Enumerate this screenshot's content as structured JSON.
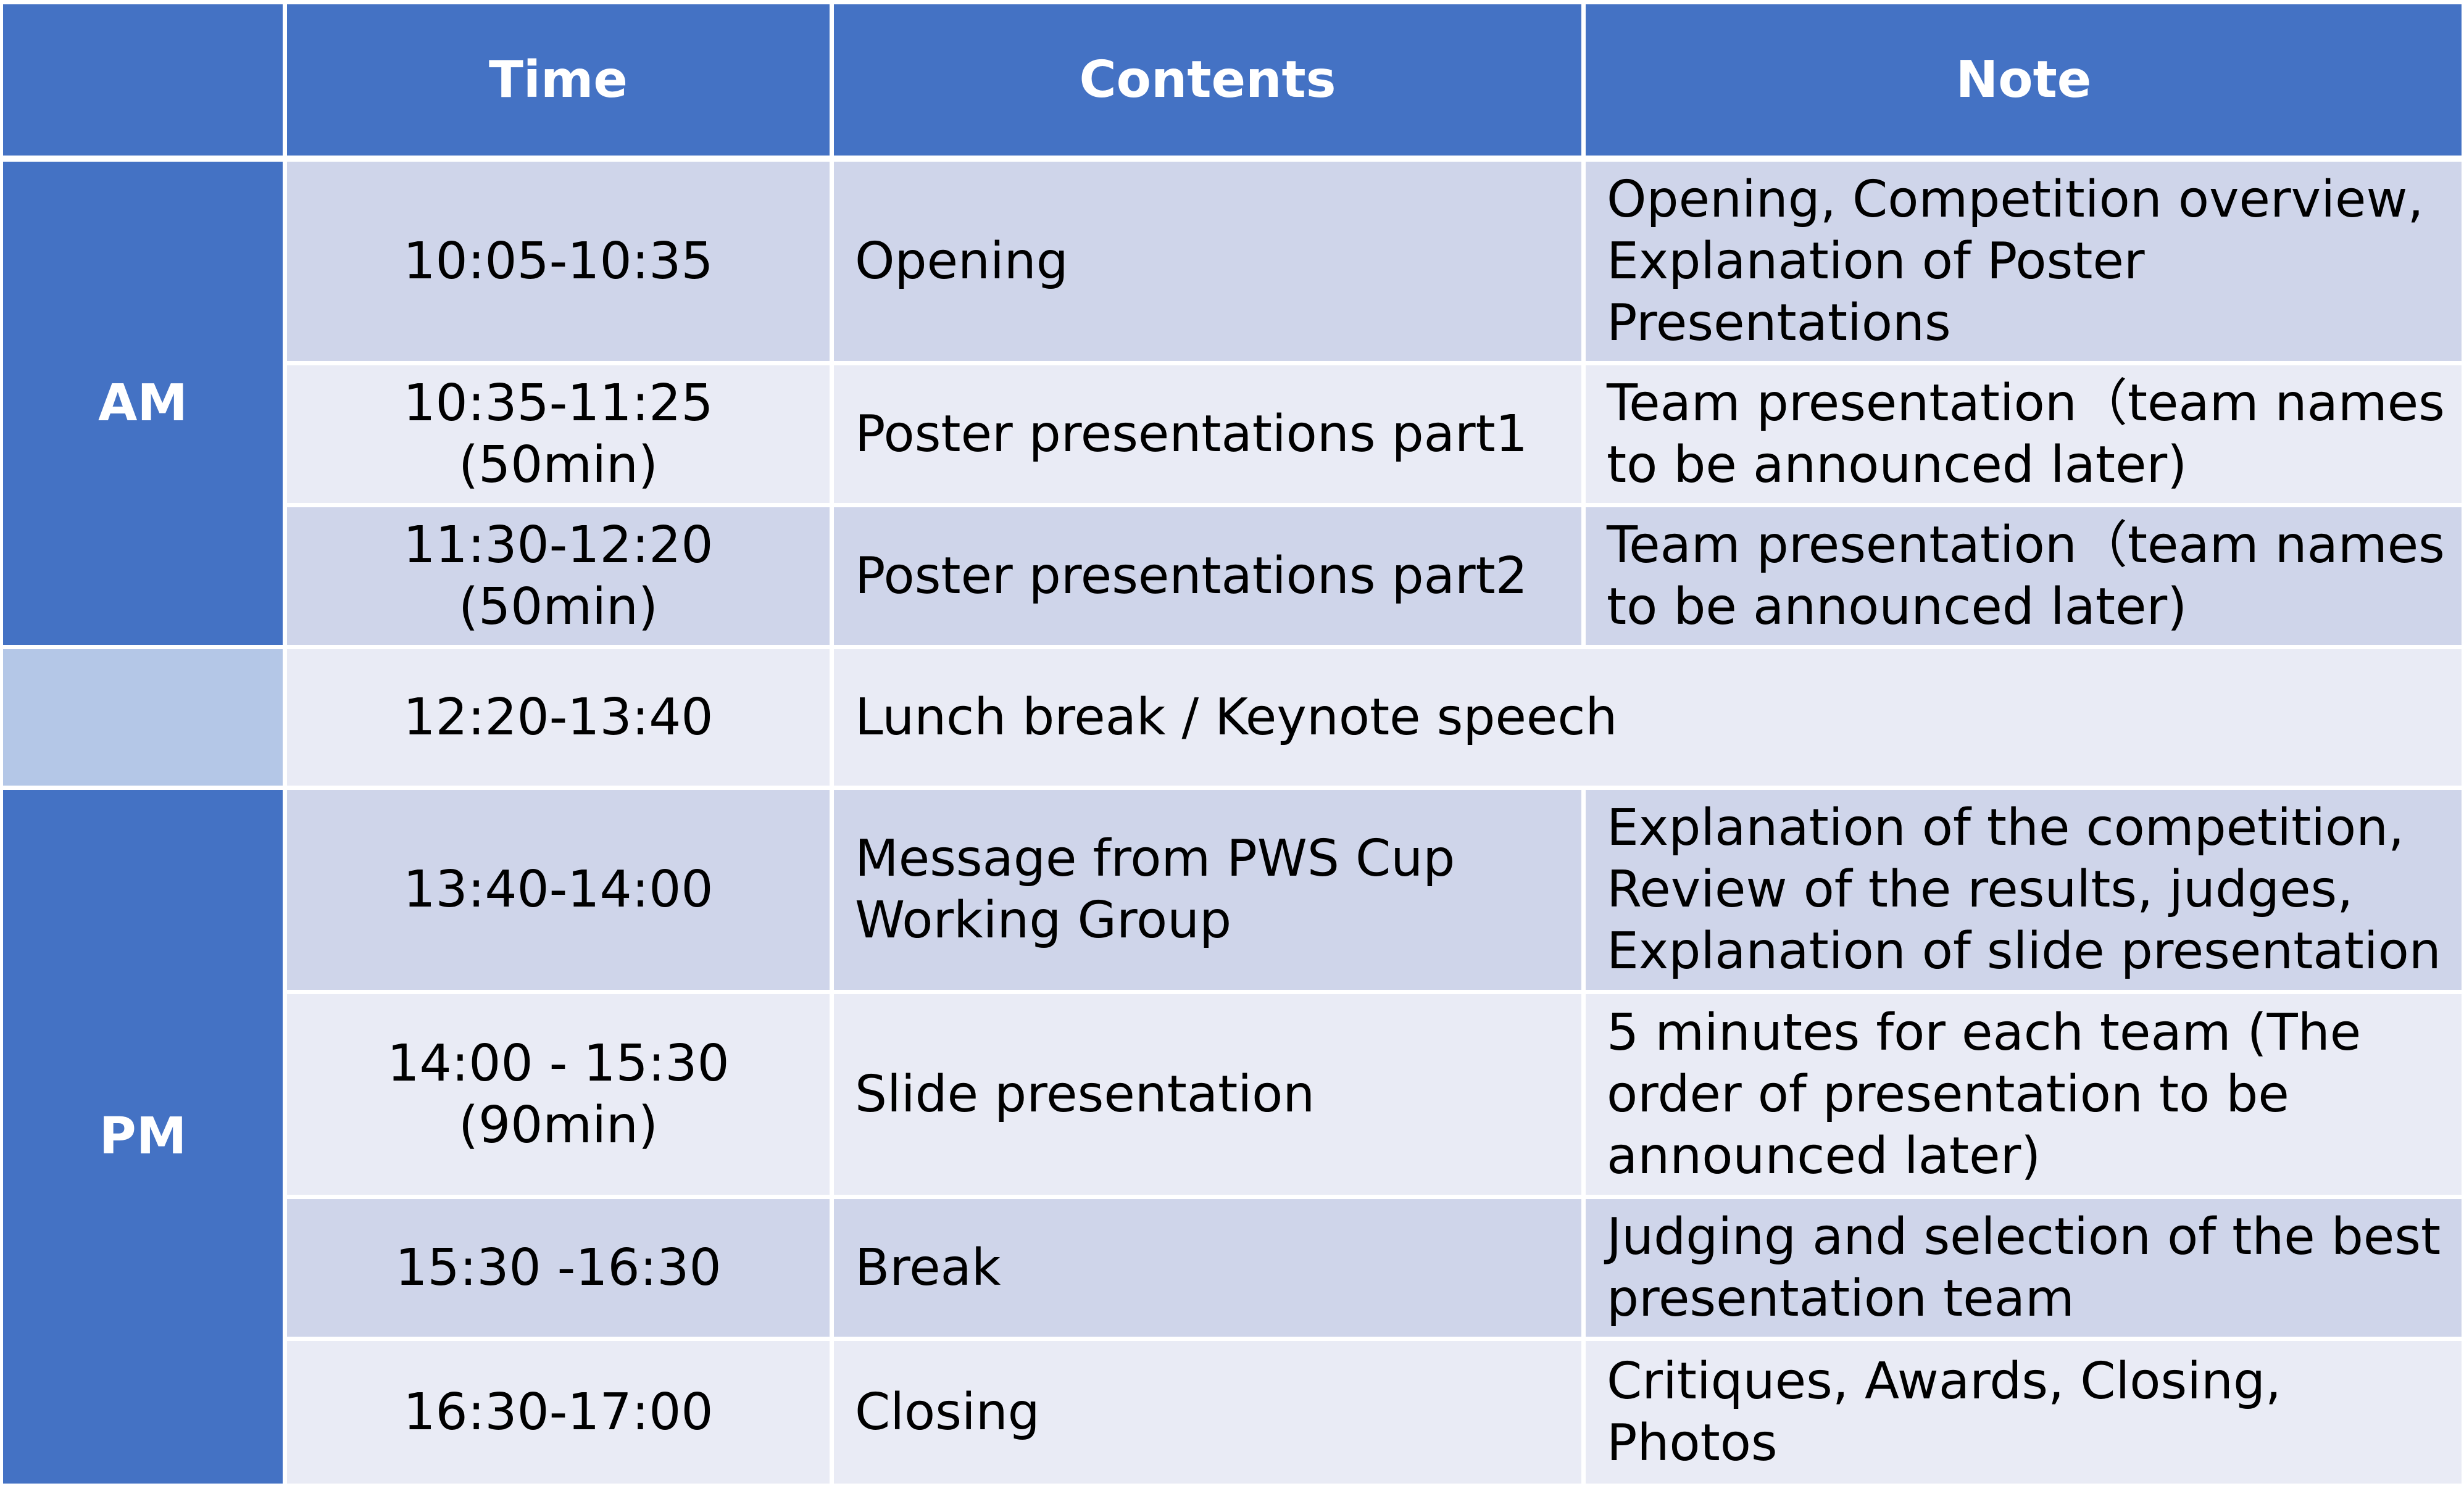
{
  "header": {
    "col_period": "",
    "col_time": "Time",
    "col_contents": "Contents",
    "col_note": "Note"
  },
  "periods": {
    "am": "AM",
    "lunch": "",
    "pm": "PM"
  },
  "rows": [
    {
      "time": [
        "10:05-10:35"
      ],
      "contents": [
        "Opening"
      ],
      "note": [
        "Opening, Competition overview,",
        "Explanation of Poster",
        "Presentations"
      ]
    },
    {
      "time": [
        "10:35-11:25",
        "(50min)"
      ],
      "contents": [
        "Poster presentations part1"
      ],
      "note": [
        "Team presentation（team names",
        "to be announced later)"
      ]
    },
    {
      "time": [
        "11:30-12:20",
        "(50min)"
      ],
      "contents": [
        "Poster presentations part2"
      ],
      "note": [
        "Team presentation（team names",
        "to be announced later)"
      ]
    },
    {
      "time": [
        "12:20-13:40"
      ],
      "contents": [
        "Lunch break / Keynote speech"
      ],
      "note": []
    },
    {
      "time": [
        "13:40-14:00"
      ],
      "contents": [
        "Message from PWS Cup",
        "Working Group"
      ],
      "note": [
        "Explanation of the competition,",
        "Review of the results, judges,",
        "Explanation of slide presentation"
      ]
    },
    {
      "time": [
        "14:00 - 15:30",
        "(90min)"
      ],
      "contents": [
        "Slide presentation"
      ],
      "note": [
        "5 minutes for each team (The",
        "order of presentation to be",
        "announced later)"
      ]
    },
    {
      "time": [
        "15:30 -16:30"
      ],
      "contents": [
        "Break"
      ],
      "note": [
        "Judging and selection of the best",
        "presentation team"
      ]
    },
    {
      "time": [
        "16:30-17:00"
      ],
      "contents": [
        "Closing"
      ],
      "note": [
        "Critiques, Awards, Closing,",
        "Photos"
      ]
    }
  ],
  "colors": {
    "header_bg": "#4472c4",
    "period_bg": "#4472c4",
    "lunch_period_bg": "#b4c7e7",
    "row_dark_bg": "#cfd5ea",
    "row_light_bg": "#e9ebf5",
    "header_text": "#ffffff",
    "body_text": "#000000"
  }
}
